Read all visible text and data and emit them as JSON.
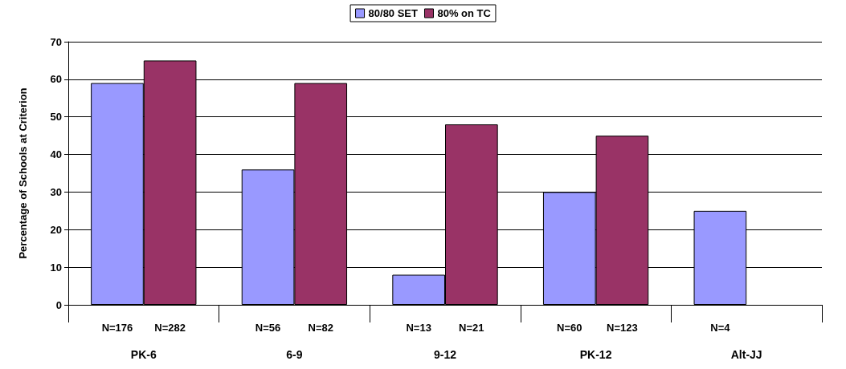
{
  "chart_data": {
    "type": "bar",
    "ylabel": "Percentage of Schools at Criterion",
    "categories": [
      "PK-6",
      "6-9",
      "9-12",
      "PK-12",
      "Alt-JJ"
    ],
    "series": [
      {
        "name": "80/80 SET",
        "color": "#9999ff",
        "values": [
          59,
          36,
          8,
          30,
          25
        ]
      },
      {
        "name": "80% on TC",
        "color": "#993366",
        "values": [
          65,
          59,
          48,
          45,
          null
        ]
      }
    ],
    "annotations": [
      "N=176",
      "N=282",
      "N=56",
      "N=82",
      "N=13",
      "N=21",
      "N=60",
      "N=123",
      "N=4"
    ],
    "ylim": [
      0,
      70
    ],
    "yticks": [
      0,
      10,
      20,
      30,
      40,
      50,
      60,
      70
    ],
    "grid": "y",
    "legend": "top"
  }
}
